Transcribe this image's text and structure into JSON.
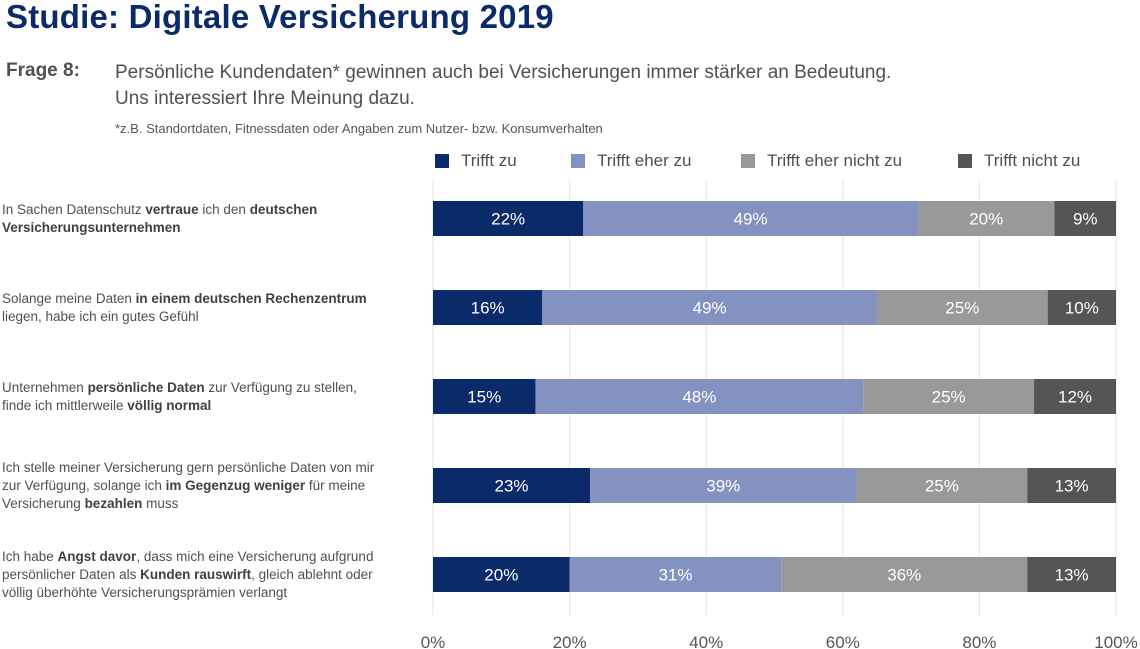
{
  "header": {
    "title": "Studie: Digitale Versicherung 2019",
    "question_label": "Frage 8:",
    "question_line1": "Persönliche Kundendaten* gewinnen auch bei Versicherungen immer stärker an Bedeutung.",
    "question_line2": "Uns interessiert Ihre Meinung dazu.",
    "footnote": "*z.B. Standortdaten, Fitnessdaten oder Angaben zum Nutzer- bzw. Konsumverhalten"
  },
  "colors": {
    "trifft_zu": "#0b2a6a",
    "trifft_eher_zu": "#8392c0",
    "trifft_eher_nicht_zu": "#999999",
    "trifft_nicht_zu": "#555555",
    "grid": "#e3e3e3"
  },
  "rows": [
    {
      "parts": [
        {
          "t": "In Sachen Datenschutz ",
          "b": false
        },
        {
          "t": "vertraue",
          "b": true
        },
        {
          "t": " ich den ",
          "b": false
        },
        {
          "t": "deutschen",
          "b": true
        },
        {
          "t": "\n",
          "b": false
        },
        {
          "t": "Versicherungsunternehmen",
          "b": true
        }
      ]
    },
    {
      "parts": [
        {
          "t": "Solange meine Daten ",
          "b": false
        },
        {
          "t": "in einem deutschen Rechenzentrum",
          "b": true
        },
        {
          "t": "\nliegen, habe ich ein gutes Gefühl",
          "b": false
        }
      ]
    },
    {
      "parts": [
        {
          "t": "Unternehmen ",
          "b": false
        },
        {
          "t": "persönliche Daten",
          "b": true
        },
        {
          "t": " zur Verfügung zu stellen,\nfinde ich mittlerweile ",
          "b": false
        },
        {
          "t": "völlig normal",
          "b": true
        }
      ]
    },
    {
      "parts": [
        {
          "t": "Ich stelle meiner Versicherung gern persönliche Daten von mir\nzur Verfügung, solange ich ",
          "b": false
        },
        {
          "t": "im Gegenzug weniger",
          "b": true
        },
        {
          "t": " für meine\nVersicherung ",
          "b": false
        },
        {
          "t": "bezahlen",
          "b": true
        },
        {
          "t": " muss",
          "b": false
        }
      ]
    },
    {
      "parts": [
        {
          "t": "Ich habe ",
          "b": false
        },
        {
          "t": "Angst davor",
          "b": true
        },
        {
          "t": ", dass mich eine Versicherung aufgrund\npersönlicher Daten als ",
          "b": false
        },
        {
          "t": "Kunden rauswirft",
          "b": true
        },
        {
          "t": ", gleich ablehnt oder\nvöllig überhöhte Versicherungsprämien verlangt",
          "b": false
        }
      ]
    }
  ],
  "chart_data": {
    "type": "bar",
    "orientation": "horizontal",
    "stacked": true,
    "categories": [
      "In Sachen Datenschutz vertraue ich den deutschen Versicherungsunternehmen",
      "Solange meine Daten in einem deutschen Rechenzentrum liegen, habe ich ein gutes Gefühl",
      "Unternehmen persönliche Daten zur Verfügung zu stellen, finde ich mittlerweile völlig normal",
      "Ich stelle meiner Versicherung gern persönliche Daten von mir zur Verfügung, solange ich im Gegenzug weniger für meine Versicherung bezahlen muss",
      "Ich habe Angst davor, dass mich eine Versicherung aufgrund persönlicher Daten als Kunden rauswirft, gleich ablehnt oder völlig überhöhte Versicherungsprämien verlangt"
    ],
    "series": [
      {
        "name": "Trifft zu",
        "values": [
          22,
          16,
          15,
          23,
          20
        ]
      },
      {
        "name": "Trifft eher zu",
        "values": [
          49,
          49,
          48,
          39,
          31
        ]
      },
      {
        "name": "Trifft eher nicht zu",
        "values": [
          20,
          25,
          25,
          25,
          36
        ]
      },
      {
        "name": "Trifft nicht zu",
        "values": [
          9,
          10,
          12,
          13,
          13
        ]
      }
    ],
    "xlim": [
      0,
      100
    ],
    "x_ticks": [
      "0%",
      "20%",
      "40%",
      "60%",
      "80%",
      "100%"
    ],
    "value_suffix": "%",
    "grid": true,
    "legend_position": "top"
  }
}
